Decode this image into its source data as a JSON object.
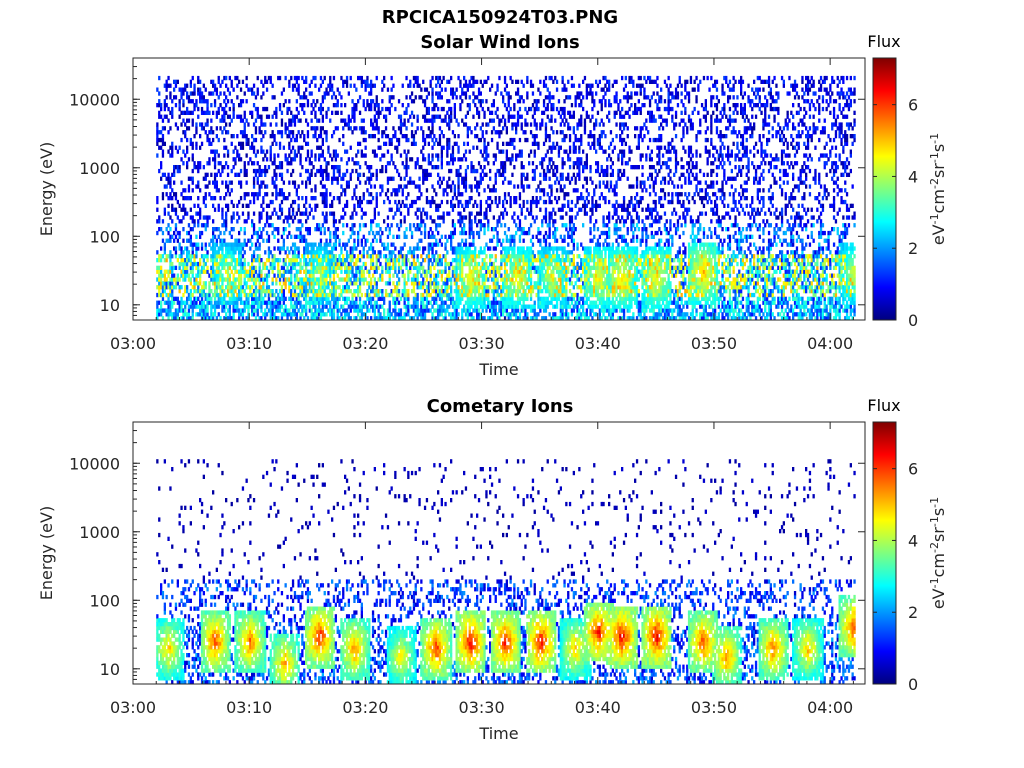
{
  "figure_title": "RPCICA150924T03.PNG",
  "colors": {
    "axis": "#262626",
    "background": "#ffffff",
    "colormap": [
      "#00007f",
      "#0000ff",
      "#007fff",
      "#00ffff",
      "#7fff7f",
      "#ffff00",
      "#ff7f00",
      "#ff0000",
      "#7f0000"
    ]
  },
  "chart_data": [
    {
      "type": "heatmap",
      "title": "Solar Wind Ions",
      "xlabel": "Time",
      "ylabel": "Energy (eV)",
      "y_scale": "log",
      "xlim": [
        "03:00",
        "04:03"
      ],
      "ylim": [
        6,
        40000
      ],
      "x_ticks": [
        "03:00",
        "03:10",
        "03:20",
        "03:30",
        "03:40",
        "03:50",
        "04:00"
      ],
      "y_ticks": [
        "10",
        "100",
        "1000",
        "10000"
      ],
      "colorbar": {
        "label": "Flux",
        "unit": "eV-1cm-2sr-1s-1",
        "range": [
          0,
          7.3
        ],
        "ticks": [
          "0",
          "2",
          "4",
          "6"
        ]
      },
      "data_window": [
        "03:02",
        "04:02"
      ],
      "bands": [
        {
          "energy_range_eV": [
            6,
            13
          ],
          "flux_range": [
            1,
            3.2
          ],
          "coverage": 0.65
        },
        {
          "energy_range_eV": [
            13,
            55
          ],
          "flux_range": [
            1,
            5.2
          ],
          "coverage": 0.6
        },
        {
          "energy_range_eV": [
            55,
            160
          ],
          "flux_range": [
            0.6,
            2.6
          ],
          "coverage": 0.35
        },
        {
          "energy_range_eV": [
            160,
            22000
          ],
          "flux_range": [
            0.2,
            1.4
          ],
          "coverage": 0.3
        }
      ],
      "enhancement_intervals": [
        {
          "time": "03:08",
          "energy_eV": 30,
          "peak_flux": 4.2
        },
        {
          "time": "03:16",
          "energy_eV": 30,
          "peak_flux": 4.0
        },
        {
          "time": "03:29",
          "energy_eV": 25,
          "peak_flux": 5.0
        },
        {
          "time": "03:33",
          "energy_eV": 25,
          "peak_flux": 5.0
        },
        {
          "time": "03:36",
          "energy_eV": 25,
          "peak_flux": 4.6
        },
        {
          "time": "03:40",
          "energy_eV": 25,
          "peak_flux": 5.0
        },
        {
          "time": "03:42",
          "energy_eV": 25,
          "peak_flux": 5.3
        },
        {
          "time": "03:45",
          "energy_eV": 25,
          "peak_flux": 5.2
        },
        {
          "time": "03:49",
          "energy_eV": 30,
          "peak_flux": 5.6
        },
        {
          "time": "04:02",
          "energy_eV": 30,
          "peak_flux": 4.6
        }
      ]
    },
    {
      "type": "heatmap",
      "title": "Cometary Ions",
      "xlabel": "Time",
      "ylabel": "Energy (eV)",
      "y_scale": "log",
      "xlim": [
        "03:00",
        "04:03"
      ],
      "ylim": [
        6,
        40000
      ],
      "x_ticks": [
        "03:00",
        "03:10",
        "03:20",
        "03:30",
        "03:40",
        "03:50",
        "04:00"
      ],
      "y_ticks": [
        "10",
        "100",
        "1000",
        "10000"
      ],
      "colorbar": {
        "label": "Flux",
        "unit": "eV-1cm-2sr-1s-1",
        "range": [
          0,
          7.3
        ],
        "ticks": [
          "0",
          "2",
          "4",
          "6"
        ]
      },
      "data_window": [
        "03:02",
        "04:02"
      ],
      "bands": [
        {
          "energy_range_eV": [
            6,
            40
          ],
          "flux_range": [
            0.5,
            2.2
          ],
          "coverage": 0.4
        },
        {
          "energy_range_eV": [
            40,
            200
          ],
          "flux_range": [
            0.5,
            2.0
          ],
          "coverage": 0.25
        },
        {
          "energy_range_eV": [
            200,
            12000
          ],
          "flux_range": [
            0.2,
            0.6
          ],
          "coverage": 0.05
        }
      ],
      "enhancement_intervals": [
        {
          "time": "03:03",
          "energy_eV": 20,
          "peak_flux": 5.5
        },
        {
          "time": "03:07",
          "energy_eV": 25,
          "peak_flux": 6.5
        },
        {
          "time": "03:10",
          "energy_eV": 25,
          "peak_flux": 6.2
        },
        {
          "time": "03:13",
          "energy_eV": 12,
          "peak_flux": 5.8
        },
        {
          "time": "03:16",
          "energy_eV": 30,
          "peak_flux": 6.8
        },
        {
          "time": "03:19",
          "energy_eV": 20,
          "peak_flux": 6.0
        },
        {
          "time": "03:23",
          "energy_eV": 15,
          "peak_flux": 5.2
        },
        {
          "time": "03:26",
          "energy_eV": 20,
          "peak_flux": 6.6
        },
        {
          "time": "03:29",
          "energy_eV": 25,
          "peak_flux": 7.0
        },
        {
          "time": "03:32",
          "energy_eV": 25,
          "peak_flux": 6.8
        },
        {
          "time": "03:35",
          "energy_eV": 25,
          "peak_flux": 7.0
        },
        {
          "time": "03:38",
          "energy_eV": 20,
          "peak_flux": 5.5
        },
        {
          "time": "03:40",
          "energy_eV": 35,
          "peak_flux": 6.8
        },
        {
          "time": "03:42",
          "energy_eV": 30,
          "peak_flux": 7.0
        },
        {
          "time": "03:45",
          "energy_eV": 30,
          "peak_flux": 7.0
        },
        {
          "time": "03:49",
          "energy_eV": 25,
          "peak_flux": 6.5
        },
        {
          "time": "03:51",
          "energy_eV": 15,
          "peak_flux": 6.0
        },
        {
          "time": "03:55",
          "energy_eV": 20,
          "peak_flux": 6.2
        },
        {
          "time": "03:58",
          "energy_eV": 20,
          "peak_flux": 5.5
        },
        {
          "time": "04:02",
          "energy_eV": 40,
          "peak_flux": 6.5
        }
      ]
    }
  ]
}
